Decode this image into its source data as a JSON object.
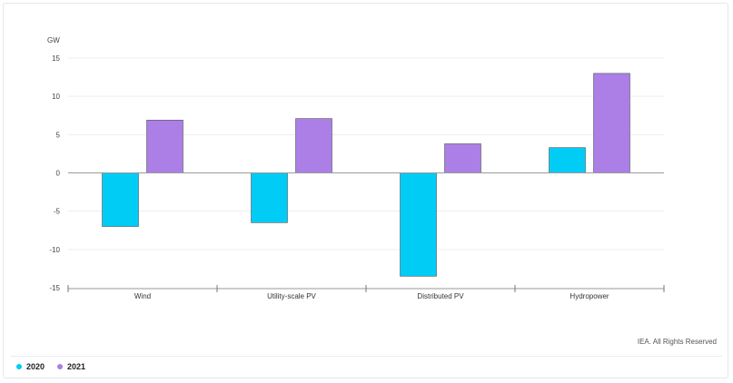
{
  "chart_data": {
    "type": "bar",
    "ylabel": "GW",
    "ylim": [
      -15,
      15
    ],
    "yticks": [
      15,
      10,
      5,
      0,
      -5,
      -10,
      -15
    ],
    "categories": [
      "Wind",
      "Utility-scale PV",
      "Distributed PV",
      "Hydropower"
    ],
    "series": [
      {
        "name": "2020",
        "color": "#00ccf5",
        "values": [
          -7.0,
          -6.5,
          -13.5,
          3.3
        ]
      },
      {
        "name": "2021",
        "color": "#ab7fe6",
        "values": [
          6.9,
          7.1,
          3.8,
          13.0
        ]
      }
    ],
    "grid": true,
    "legend_position": "bottom-left"
  },
  "credit": "IEA. All Rights Reserved",
  "legend": [
    {
      "label": "2020",
      "color": "#00ccf5"
    },
    {
      "label": "2021",
      "color": "#ab7fe6"
    }
  ]
}
